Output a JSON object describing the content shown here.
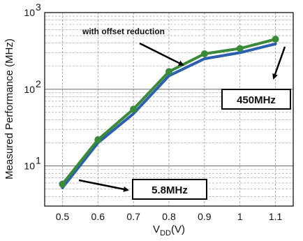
{
  "chart_data": {
    "type": "line",
    "title": "",
    "xlabel": "V",
    "xlabel_sub": "DD",
    "xlabel_unit": "(V)",
    "ylabel": "Measured Performance (MHz)",
    "y_scale": "log",
    "ylim": [
      3,
      1000
    ],
    "xlim": [
      0.45,
      1.15
    ],
    "x_ticks": [
      0.5,
      0.6,
      0.7,
      0.8,
      0.9,
      1.0,
      1.1
    ],
    "x_tick_labels": [
      "0.5",
      "0.6",
      "0.7",
      "0.8",
      "0.9",
      "1",
      "1.1"
    ],
    "y_tick_labels": [
      {
        "value": 10,
        "base": "10",
        "exp": "1"
      },
      {
        "value": 100,
        "base": "10",
        "exp": "2"
      },
      {
        "value": 1000,
        "base": "10",
        "exp": "3"
      }
    ],
    "grid": true,
    "series": [
      {
        "color": "#3a8a3a",
        "markers": true,
        "x": [
          0.5,
          0.6,
          0.7,
          0.8,
          0.9,
          1.0,
          1.1
        ],
        "y": [
          5.8,
          22,
          55,
          170,
          290,
          340,
          450
        ]
      },
      {
        "color": "#2b5fb0",
        "markers": false,
        "x": [
          0.5,
          0.6,
          0.7,
          0.8,
          0.9,
          1.0,
          1.1
        ],
        "y": [
          5.2,
          20,
          48,
          150,
          250,
          300,
          390
        ]
      }
    ],
    "annotations": [
      {
        "text": "with offset reduction",
        "style": "plain"
      },
      {
        "text": "450MHz",
        "style": "boxed"
      },
      {
        "text": "5.8MHz",
        "style": "boxed"
      }
    ]
  }
}
